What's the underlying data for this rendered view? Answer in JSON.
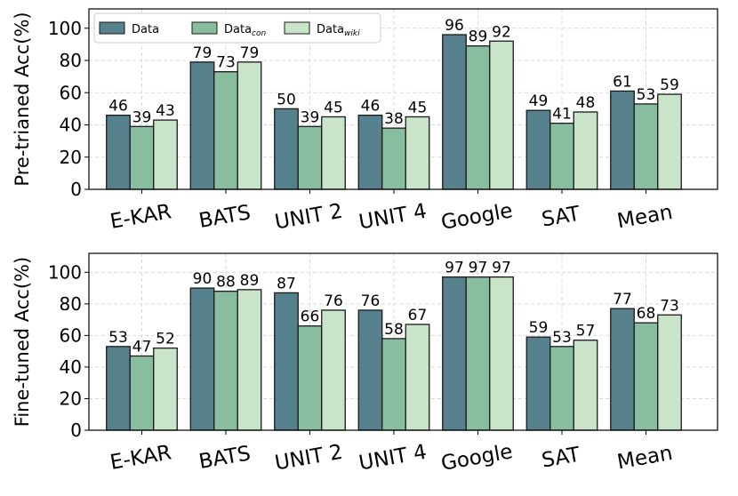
{
  "chart_data": [
    {
      "type": "bar",
      "categories": [
        "E-KAR",
        "BATS",
        "UNIT 2",
        "UNIT 4",
        "Google",
        "SAT",
        "Mean"
      ],
      "ylabel": "Pre-trianed Acc(%)",
      "ylim": [
        0,
        112
      ],
      "yticks": [
        0,
        20,
        40,
        60,
        80,
        100
      ],
      "grid": true,
      "legend": "top-left",
      "series": [
        {
          "name": "Data",
          "sub": "",
          "values": [
            46,
            79,
            50,
            46,
            96,
            49,
            61
          ],
          "labels": [
            "46",
            "79",
            "50",
            "46",
            "96",
            "49",
            "61"
          ]
        },
        {
          "name": "Data",
          "sub": "con",
          "values": [
            39,
            73,
            39,
            38,
            89,
            41,
            53
          ],
          "labels": [
            "39",
            "73",
            "39",
            "38",
            "89",
            "41",
            "53"
          ]
        },
        {
          "name": "Data",
          "sub": "wiki",
          "values": [
            43,
            79,
            45,
            45,
            92,
            48,
            59
          ],
          "labels": [
            "43",
            "79",
            "45",
            "45",
            "92",
            "48",
            "59"
          ]
        }
      ]
    },
    {
      "type": "bar",
      "categories": [
        "E-KAR",
        "BATS",
        "UNIT 2",
        "UNIT 4",
        "Google",
        "SAT",
        "Mean"
      ],
      "ylabel": "Fine-tuned Acc(%)",
      "ylim": [
        0,
        112
      ],
      "yticks": [
        0,
        20,
        40,
        60,
        80,
        100
      ],
      "grid": true,
      "legend": "none",
      "series": [
        {
          "name": "Data",
          "sub": "",
          "values": [
            53,
            90,
            87,
            76,
            97,
            59,
            77
          ],
          "labels": [
            "53",
            "90",
            "87",
            "76",
            "97",
            "59",
            "77"
          ]
        },
        {
          "name": "Data",
          "sub": "con",
          "values": [
            47,
            88,
            66,
            58,
            97,
            53,
            68
          ],
          "labels": [
            "47",
            "88",
            "66",
            "58",
            "97",
            "53",
            "68"
          ]
        },
        {
          "name": "Data",
          "sub": "wiki",
          "values": [
            52,
            89,
            76,
            67,
            97,
            57,
            73
          ],
          "labels": [
            "52",
            "89",
            "76",
            "67",
            "97",
            "57",
            "73"
          ]
        }
      ]
    }
  ],
  "colors": {
    "series": [
      "#55808c",
      "#88bd9f",
      "#c9e4c8"
    ],
    "edge": "#1a1a1a",
    "grid": "#d9d9d9"
  }
}
